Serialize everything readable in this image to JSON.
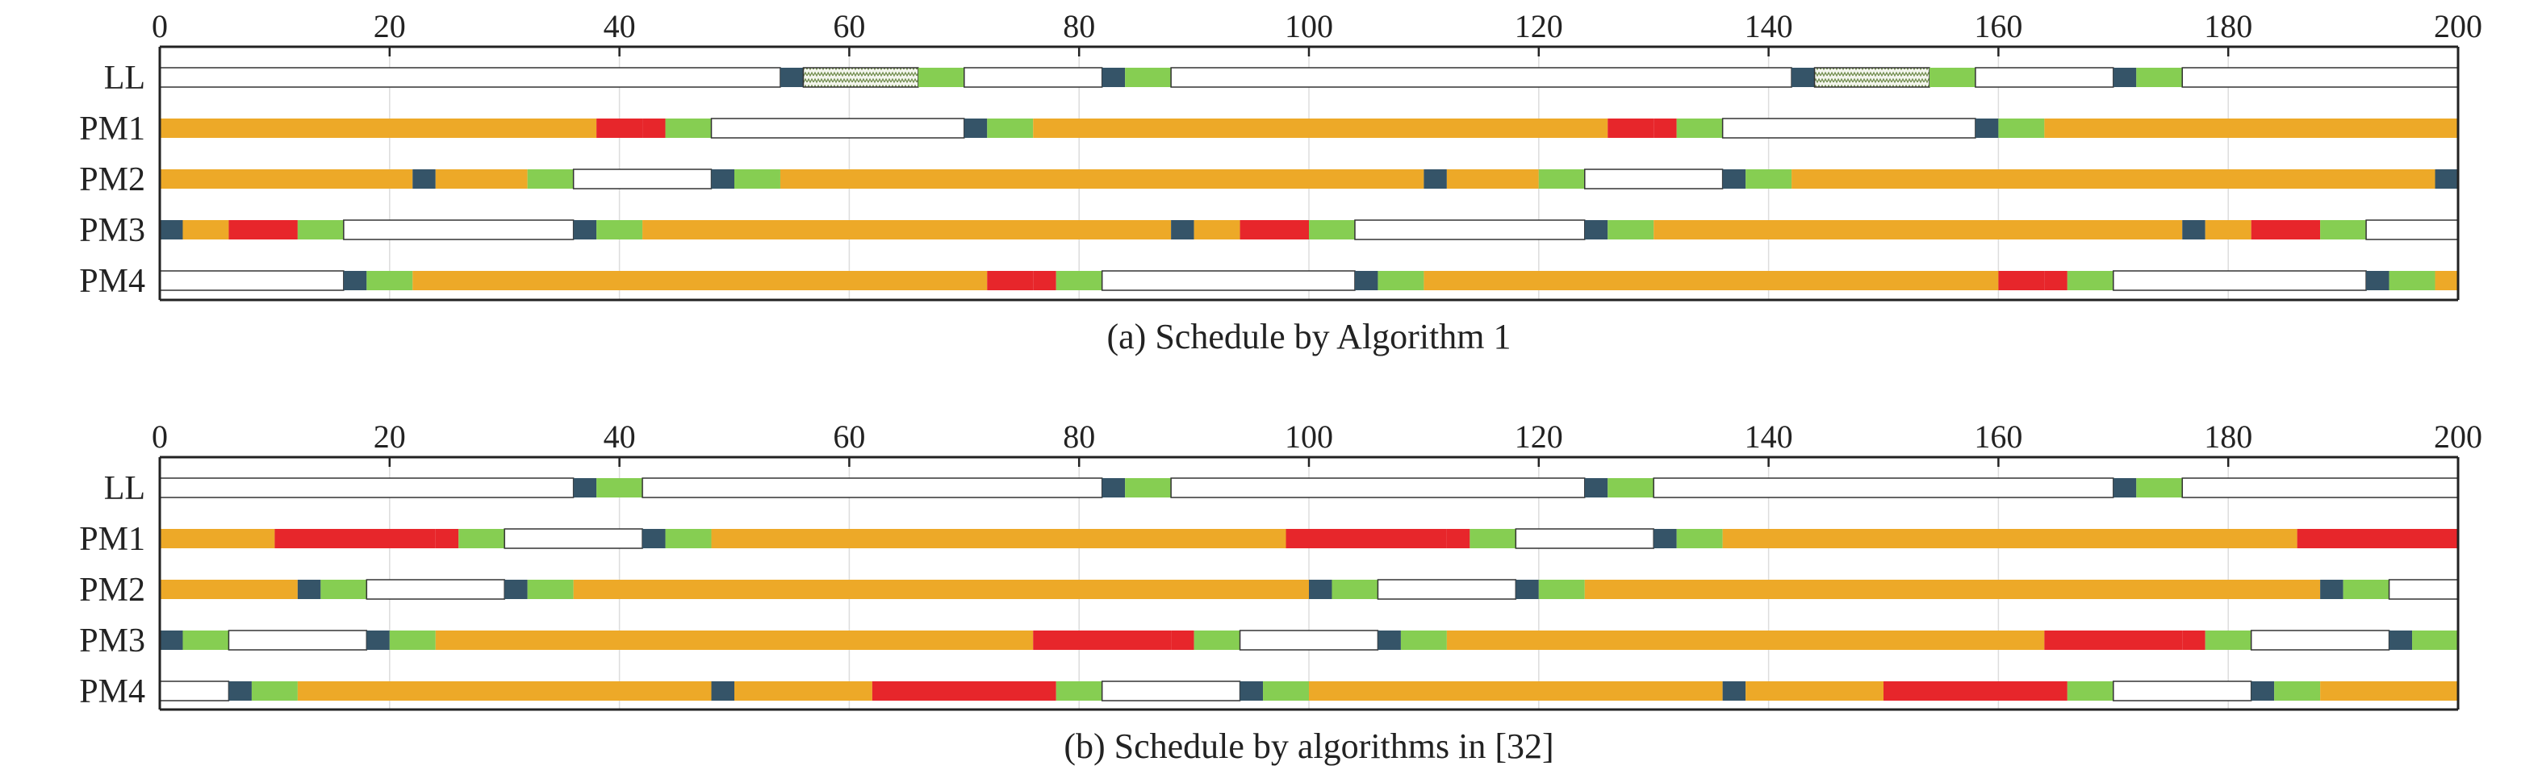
{
  "colors": {
    "orange": "#EDA928",
    "red": "#E7262B",
    "green": "#86CE52",
    "navy": "#355468",
    "white": "#FFFFFF",
    "hatch": "#6E8A4A",
    "axis": "#222222",
    "grid": "#DDDDDD"
  },
  "chart_data": [
    {
      "type": "gantt",
      "caption": "(a) Schedule by Algorithm 1",
      "xlim": [
        0,
        200
      ],
      "xticks": [
        0,
        20,
        40,
        60,
        80,
        100,
        120,
        140,
        160,
        180,
        200
      ],
      "grid": true,
      "rows": [
        {
          "label": "LL",
          "segments": [
            [
              0,
              54,
              "white"
            ],
            [
              54,
              56,
              "navy"
            ],
            [
              56,
              66,
              "hatch"
            ],
            [
              66,
              70,
              "green"
            ],
            [
              70,
              82,
              "white"
            ],
            [
              82,
              84,
              "navy"
            ],
            [
              84,
              88,
              "green"
            ],
            [
              88,
              142,
              "white"
            ],
            [
              142,
              144,
              "navy"
            ],
            [
              144,
              154,
              "hatch"
            ],
            [
              154,
              158,
              "green"
            ],
            [
              158,
              170,
              "white"
            ],
            [
              170,
              172,
              "navy"
            ],
            [
              172,
              176,
              "green"
            ],
            [
              176,
              200,
              "white"
            ]
          ]
        },
        {
          "label": "PM1",
          "segments": [
            [
              0,
              38,
              "orange"
            ],
            [
              38,
              42,
              "red"
            ],
            [
              42,
              44,
              "red"
            ],
            [
              44,
              48,
              "green"
            ],
            [
              48,
              70,
              "white"
            ],
            [
              70,
              72,
              "navy"
            ],
            [
              72,
              76,
              "green"
            ],
            [
              76,
              126,
              "orange"
            ],
            [
              126,
              130,
              "red"
            ],
            [
              130,
              132,
              "red"
            ],
            [
              132,
              136,
              "green"
            ],
            [
              136,
              158,
              "white"
            ],
            [
              158,
              160,
              "navy"
            ],
            [
              160,
              164,
              "green"
            ],
            [
              164,
              200,
              "orange"
            ]
          ]
        },
        {
          "label": "PM2",
          "segments": [
            [
              0,
              22,
              "orange"
            ],
            [
              22,
              24,
              "navy"
            ],
            [
              24,
              32,
              "orange"
            ],
            [
              32,
              36,
              "green"
            ],
            [
              36,
              48,
              "white"
            ],
            [
              48,
              50,
              "navy"
            ],
            [
              50,
              54,
              "green"
            ],
            [
              54,
              110,
              "orange"
            ],
            [
              110,
              112,
              "navy"
            ],
            [
              112,
              120,
              "orange"
            ],
            [
              120,
              124,
              "green"
            ],
            [
              124,
              136,
              "white"
            ],
            [
              136,
              138,
              "navy"
            ],
            [
              138,
              142,
              "green"
            ],
            [
              142,
              198,
              "orange"
            ],
            [
              198,
              200,
              "navy"
            ]
          ]
        },
        {
          "label": "PM3",
          "segments": [
            [
              0,
              2,
              "navy"
            ],
            [
              2,
              6,
              "orange"
            ],
            [
              6,
              12,
              "red"
            ],
            [
              12,
              16,
              "green"
            ],
            [
              16,
              36,
              "white"
            ],
            [
              36,
              38,
              "navy"
            ],
            [
              38,
              42,
              "green"
            ],
            [
              42,
              88,
              "orange"
            ],
            [
              88,
              90,
              "navy"
            ],
            [
              90,
              94,
              "orange"
            ],
            [
              94,
              100,
              "red"
            ],
            [
              100,
              104,
              "green"
            ],
            [
              104,
              124,
              "white"
            ],
            [
              124,
              126,
              "navy"
            ],
            [
              126,
              130,
              "green"
            ],
            [
              130,
              176,
              "orange"
            ],
            [
              176,
              178,
              "navy"
            ],
            [
              178,
              182,
              "orange"
            ],
            [
              182,
              188,
              "red"
            ],
            [
              188,
              192,
              "green"
            ],
            [
              192,
              200,
              "white"
            ]
          ]
        },
        {
          "label": "PM4",
          "segments": [
            [
              0,
              16,
              "white"
            ],
            [
              16,
              18,
              "navy"
            ],
            [
              18,
              22,
              "green"
            ],
            [
              22,
              72,
              "orange"
            ],
            [
              72,
              76,
              "red"
            ],
            [
              76,
              78,
              "red"
            ],
            [
              78,
              82,
              "green"
            ],
            [
              82,
              104,
              "white"
            ],
            [
              104,
              106,
              "navy"
            ],
            [
              106,
              110,
              "green"
            ],
            [
              110,
              160,
              "orange"
            ],
            [
              160,
              164,
              "red"
            ],
            [
              164,
              166,
              "red"
            ],
            [
              166,
              170,
              "green"
            ],
            [
              170,
              192,
              "white"
            ],
            [
              192,
              194,
              "navy"
            ],
            [
              194,
              198,
              "green"
            ],
            [
              198,
              200,
              "orange"
            ]
          ]
        }
      ]
    },
    {
      "type": "gantt",
      "caption": "(b) Schedule by algorithms in [32]",
      "xlim": [
        0,
        200
      ],
      "xticks": [
        0,
        20,
        40,
        60,
        80,
        100,
        120,
        140,
        160,
        180,
        200
      ],
      "grid": true,
      "rows": [
        {
          "label": "LL",
          "segments": [
            [
              0,
              36,
              "white"
            ],
            [
              36,
              38,
              "navy"
            ],
            [
              38,
              42,
              "green"
            ],
            [
              42,
              82,
              "white"
            ],
            [
              82,
              84,
              "navy"
            ],
            [
              84,
              88,
              "green"
            ],
            [
              88,
              124,
              "white"
            ],
            [
              124,
              126,
              "navy"
            ],
            [
              126,
              130,
              "green"
            ],
            [
              130,
              170,
              "white"
            ],
            [
              170,
              172,
              "navy"
            ],
            [
              172,
              176,
              "green"
            ],
            [
              176,
              200,
              "white"
            ]
          ]
        },
        {
          "label": "PM1",
          "segments": [
            [
              0,
              10,
              "orange"
            ],
            [
              10,
              24,
              "red"
            ],
            [
              24,
              26,
              "red"
            ],
            [
              26,
              30,
              "green"
            ],
            [
              30,
              42,
              "white"
            ],
            [
              42,
              44,
              "navy"
            ],
            [
              44,
              48,
              "green"
            ],
            [
              48,
              98,
              "orange"
            ],
            [
              98,
              112,
              "red"
            ],
            [
              112,
              114,
              "red"
            ],
            [
              114,
              118,
              "green"
            ],
            [
              118,
              130,
              "white"
            ],
            [
              130,
              132,
              "navy"
            ],
            [
              132,
              136,
              "green"
            ],
            [
              136,
              186,
              "orange"
            ],
            [
              186,
              200,
              "red"
            ]
          ]
        },
        {
          "label": "PM2",
          "segments": [
            [
              0,
              12,
              "orange"
            ],
            [
              12,
              14,
              "navy"
            ],
            [
              14,
              18,
              "green"
            ],
            [
              18,
              30,
              "white"
            ],
            [
              30,
              32,
              "navy"
            ],
            [
              32,
              36,
              "green"
            ],
            [
              36,
              100,
              "orange"
            ],
            [
              100,
              102,
              "navy"
            ],
            [
              102,
              106,
              "green"
            ],
            [
              106,
              118,
              "white"
            ],
            [
              118,
              120,
              "navy"
            ],
            [
              120,
              124,
              "green"
            ],
            [
              124,
              188,
              "orange"
            ],
            [
              188,
              190,
              "navy"
            ],
            [
              190,
              194,
              "green"
            ],
            [
              194,
              200,
              "white"
            ]
          ]
        },
        {
          "label": "PM3",
          "segments": [
            [
              0,
              2,
              "navy"
            ],
            [
              2,
              6,
              "green"
            ],
            [
              6,
              18,
              "white"
            ],
            [
              18,
              20,
              "navy"
            ],
            [
              20,
              24,
              "green"
            ],
            [
              24,
              76,
              "orange"
            ],
            [
              76,
              88,
              "red"
            ],
            [
              88,
              90,
              "red"
            ],
            [
              90,
              94,
              "green"
            ],
            [
              94,
              106,
              "white"
            ],
            [
              106,
              108,
              "navy"
            ],
            [
              108,
              112,
              "green"
            ],
            [
              112,
              164,
              "orange"
            ],
            [
              164,
              176,
              "red"
            ],
            [
              176,
              178,
              "red"
            ],
            [
              178,
              182,
              "green"
            ],
            [
              182,
              194,
              "white"
            ],
            [
              194,
              196,
              "navy"
            ],
            [
              196,
              200,
              "green"
            ]
          ]
        },
        {
          "label": "PM4",
          "segments": [
            [
              0,
              6,
              "white"
            ],
            [
              6,
              8,
              "navy"
            ],
            [
              8,
              12,
              "green"
            ],
            [
              12,
              48,
              "orange"
            ],
            [
              48,
              50,
              "navy"
            ],
            [
              50,
              62,
              "orange"
            ],
            [
              62,
              78,
              "red"
            ],
            [
              78,
              82,
              "green"
            ],
            [
              82,
              94,
              "white"
            ],
            [
              94,
              96,
              "navy"
            ],
            [
              96,
              100,
              "green"
            ],
            [
              100,
              136,
              "orange"
            ],
            [
              136,
              138,
              "navy"
            ],
            [
              138,
              150,
              "orange"
            ],
            [
              150,
              166,
              "red"
            ],
            [
              166,
              170,
              "green"
            ],
            [
              170,
              182,
              "white"
            ],
            [
              182,
              184,
              "navy"
            ],
            [
              184,
              188,
              "green"
            ],
            [
              188,
              200,
              "orange"
            ]
          ]
        }
      ]
    }
  ]
}
